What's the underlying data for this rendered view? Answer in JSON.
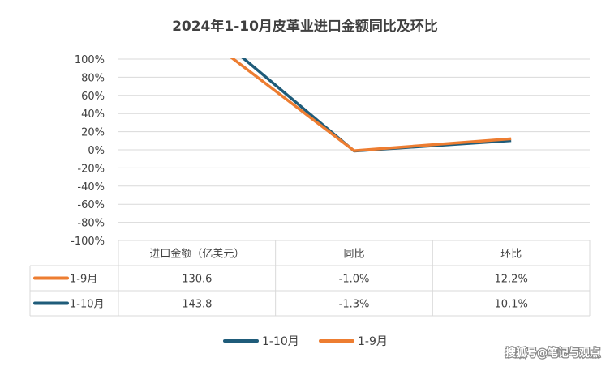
{
  "chart_data": {
    "type": "line",
    "title": "2024年1-10月皮革业进口金额同比及环比",
    "categories": [
      "进口金额（亿美元）",
      "同比",
      "环比"
    ],
    "y_ticks": [
      "100%",
      "80%",
      "60%",
      "40%",
      "20%",
      "0%",
      "-20%",
      "-40%",
      "-60%",
      "-80%",
      "-100%"
    ],
    "ylim": [
      -100,
      100
    ],
    "grid": true,
    "legend_position": "bottom",
    "series": [
      {
        "name": "1-9月",
        "color": "#ED7D31",
        "values": [
          130.6,
          -1.0,
          12.2
        ],
        "labels": [
          "130.6",
          "-1.0%",
          "12.2%"
        ]
      },
      {
        "name": "1-10月",
        "color": "#1F5C7A",
        "values": [
          143.8,
          -1.3,
          10.1
        ],
        "labels": [
          "143.8",
          "-1.3%",
          "10.1%"
        ]
      }
    ],
    "legend_order": [
      1,
      0
    ]
  },
  "watermark": "搜狐号@笔记与观点"
}
